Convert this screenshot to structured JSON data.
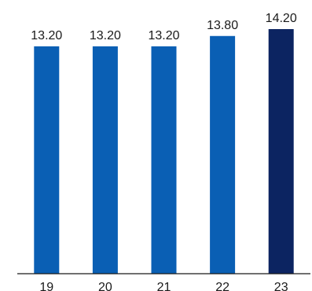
{
  "chart_data": {
    "type": "bar",
    "categories": [
      "19",
      "20",
      "21",
      "22",
      "23"
    ],
    "values": [
      13.2,
      13.2,
      13.2,
      13.8,
      14.2
    ],
    "value_labels": [
      "13.20",
      "13.20",
      "13.20",
      "13.80",
      "14.20"
    ],
    "ylim": [
      0,
      14.2
    ],
    "grid": false,
    "colors": [
      "#0a5fb4",
      "#0a5fb4",
      "#0a5fb4",
      "#0a5fb4",
      "#0c2461"
    ],
    "axis_color": "#1a1a1a"
  }
}
